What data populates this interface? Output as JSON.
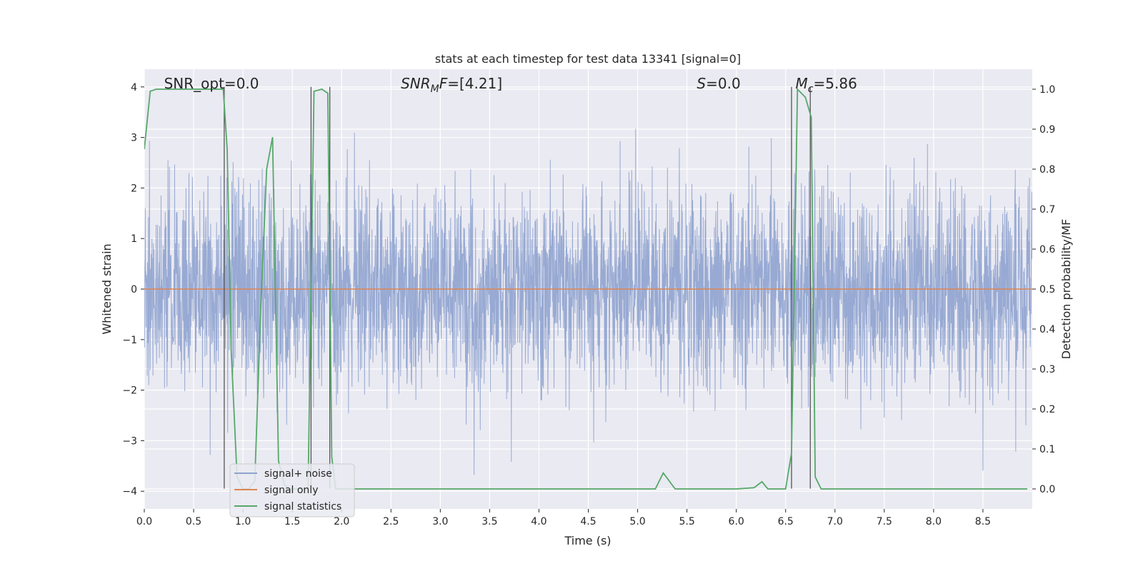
{
  "chart_data": {
    "type": "line",
    "title": "stats at each timestep for test data 13341 [signal=0]",
    "xlabel": "Time (s)",
    "ylabel": "Whitened strain",
    "y2label": "Detection probability/MF",
    "xlim": [
      0.0,
      9.0
    ],
    "ylim": [
      -4.35,
      4.35
    ],
    "y2lim": [
      -0.05,
      1.05
    ],
    "xticks": [
      0.0,
      0.5,
      1.0,
      1.5,
      2.0,
      2.5,
      3.0,
      3.5,
      4.0,
      4.5,
      5.0,
      5.5,
      6.0,
      6.5,
      7.0,
      7.5,
      8.0,
      8.5
    ],
    "xtick_labels": [
      "0.0",
      "0.5",
      "1.0",
      "1.5",
      "2.0",
      "2.5",
      "3.0",
      "3.5",
      "4.0",
      "4.5",
      "5.0",
      "5.5",
      "6.0",
      "6.5",
      "7.0",
      "7.5",
      "8.0",
      "8.5"
    ],
    "yticks": [
      4,
      3,
      2,
      1,
      0,
      -1,
      -2,
      -3,
      -4
    ],
    "ytick_labels": [
      "4",
      "3",
      "2",
      "1",
      "0",
      "−1",
      "−2",
      "−3",
      "−4"
    ],
    "y2ticks": [
      1.0,
      0.9,
      0.8,
      0.7,
      0.6,
      0.5,
      0.4,
      0.3,
      0.2,
      0.1,
      0.0
    ],
    "y2tick_labels": [
      "1.0",
      "0.9",
      "0.8",
      "0.7",
      "0.6",
      "0.5",
      "0.4",
      "0.3",
      "0.2",
      "0.1",
      "0.0"
    ],
    "grid": true,
    "legend_position": "lower-left",
    "annotations": [
      {
        "text": "SNR_opt=0.0",
        "x": 0.2
      },
      {
        "text": "SNR_MF=[4.21]",
        "x": 2.6,
        "math": true,
        "base": "SNR",
        "sub": "M",
        "rest": "F=[4.21]"
      },
      {
        "text": "S=0.0",
        "x": 5.6,
        "math": true,
        "base": "S",
        "sub": "",
        "rest": "=0.0"
      },
      {
        "text": "M_c=5.86",
        "x": 6.6,
        "math": true,
        "base": "M",
        "sub": "c",
        "rest": "=5.86"
      }
    ],
    "series": [
      {
        "name": "signal+ noise",
        "color": "#8fa3cf",
        "axis": "left",
        "kind": "noise",
        "sample_rate": 400,
        "duration": 9.0,
        "std": 1.0,
        "clip": [
          -3.95,
          3.95
        ]
      },
      {
        "name": "signal only",
        "color": "#dd8452",
        "axis": "left",
        "x": [
          0.0,
          9.0
        ],
        "y": [
          0.0,
          0.0
        ]
      },
      {
        "name": "signal statistics",
        "color": "#55a868",
        "axis": "right",
        "x": [
          0.0,
          0.06,
          0.12,
          0.2,
          0.3,
          0.4,
          0.5,
          0.6,
          0.7,
          0.8,
          0.84,
          0.88,
          0.94,
          1.0,
          1.06,
          1.12,
          1.18,
          1.24,
          1.3,
          1.36,
          1.42,
          1.48,
          1.54,
          1.6,
          1.66,
          1.72,
          1.8,
          1.86,
          1.9,
          1.94,
          2.0,
          2.1,
          2.5,
          3.0,
          3.5,
          4.0,
          4.5,
          5.0,
          5.18,
          5.26,
          5.38,
          5.5,
          6.0,
          6.18,
          6.26,
          6.32,
          6.5,
          6.56,
          6.62,
          6.7,
          6.76,
          6.8,
          6.86,
          7.0,
          7.5,
          8.0,
          8.5,
          8.95
        ],
        "y": [
          0.85,
          0.995,
          1.0,
          1.0,
          1.0,
          1.0,
          1.0,
          1.0,
          1.0,
          1.0,
          0.85,
          0.35,
          0.03,
          0.0,
          0.0,
          0.02,
          0.45,
          0.8,
          0.88,
          0.07,
          0.01,
          0.0,
          0.0,
          0.0,
          0.0,
          0.995,
          1.0,
          0.99,
          0.08,
          0.0,
          0.0,
          0.0,
          0.0,
          0.0,
          0.0,
          0.0,
          0.0,
          0.0,
          0.0,
          0.04,
          0.0,
          0.0,
          0.0,
          0.003,
          0.018,
          0.0,
          0.0,
          0.09,
          1.0,
          0.98,
          0.93,
          0.03,
          0.0,
          0.0,
          0.0,
          0.0,
          0.0,
          0.0
        ]
      }
    ],
    "vlines": {
      "color": "#555555",
      "x": [
        0.81,
        1.69,
        1.88,
        6.56,
        6.75
      ],
      "ymin": -3.95,
      "ymax": 4.0
    }
  }
}
